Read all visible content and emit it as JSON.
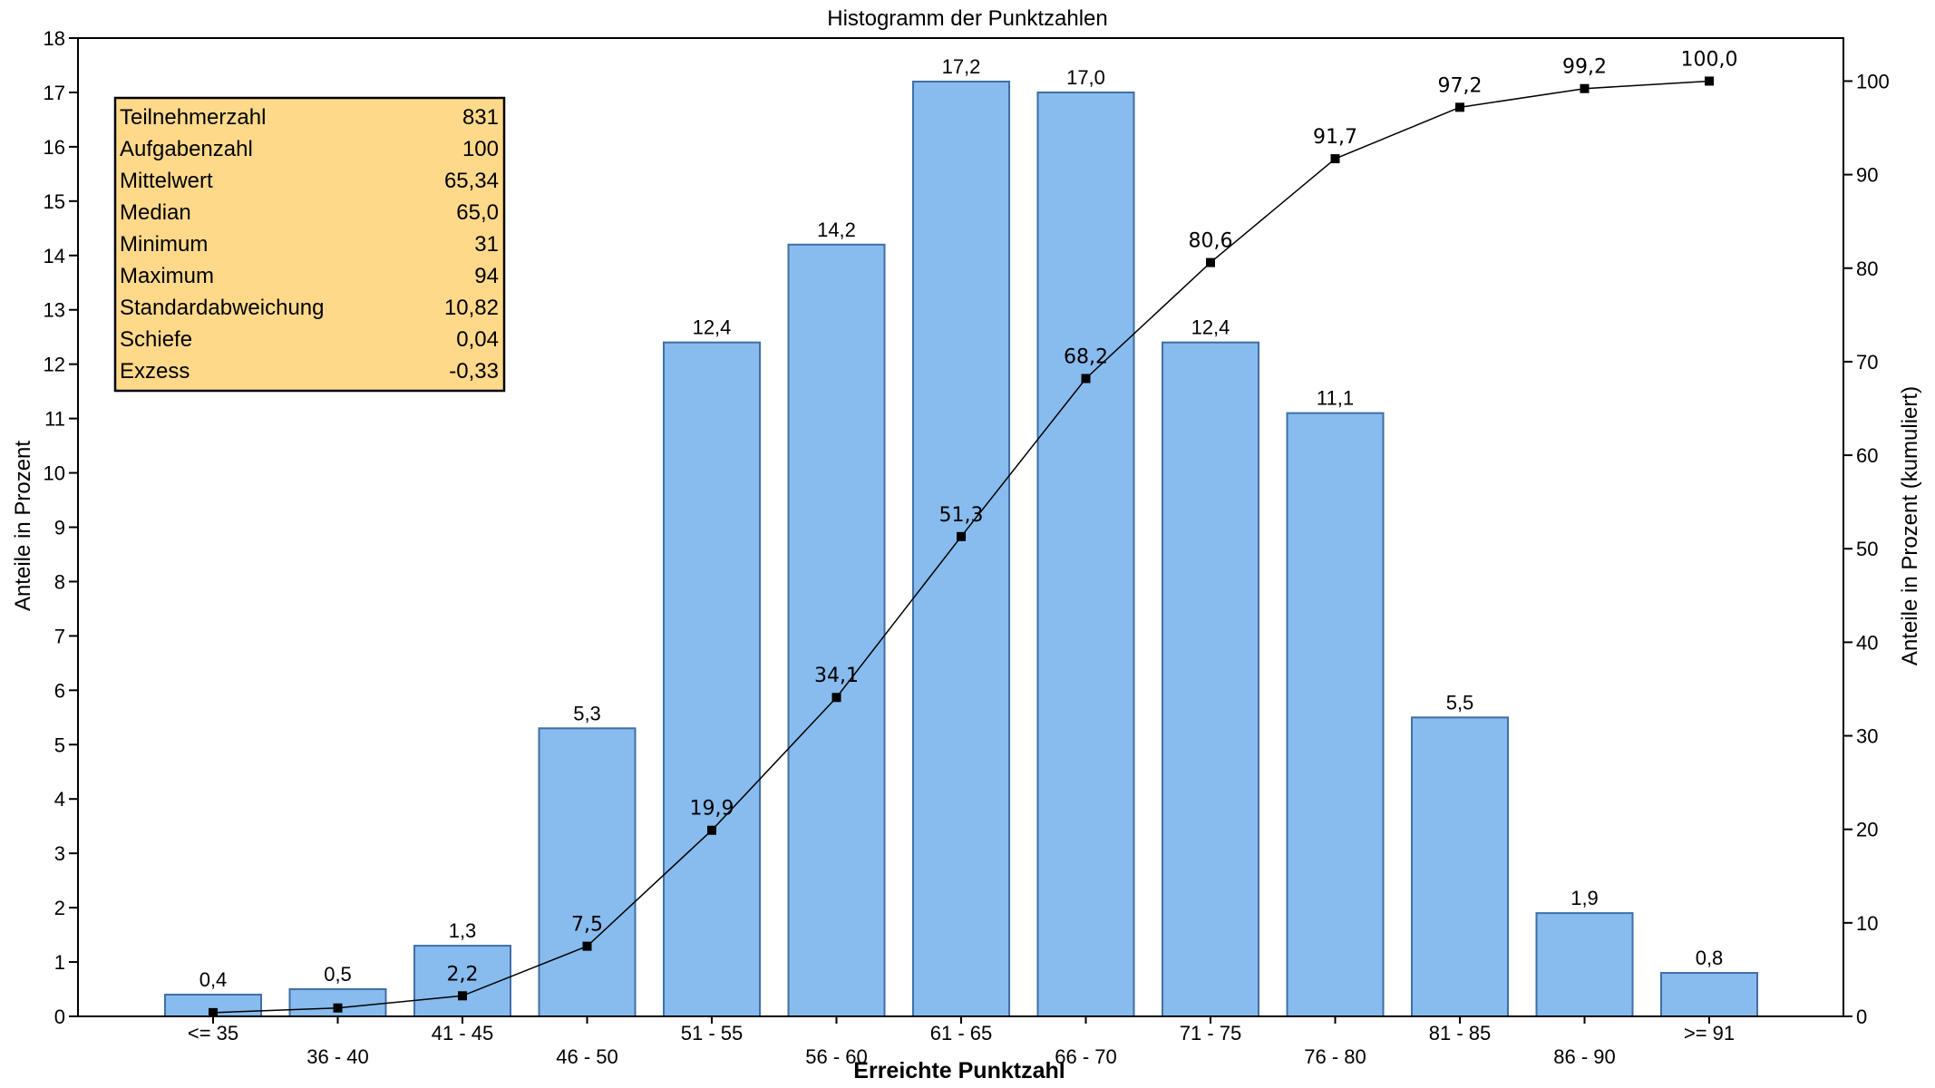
{
  "chart_data": {
    "type": "bar",
    "title": "Histogramm der Punktzahlen",
    "xlabel": "Erreichte Punktzahl",
    "ylabel": "Anteile in Prozent",
    "y2label": "Anteile in Prozent (kumuliert)",
    "categories": [
      "<= 35",
      "36 - 40",
      "41 - 45",
      "46 - 50",
      "51 - 55",
      "56 - 60",
      "61 - 65",
      "66 - 70",
      "71 - 75",
      "76 - 80",
      "81 - 85",
      "86 - 90",
      ">= 91"
    ],
    "series": [
      {
        "type": "bar",
        "axis": "left",
        "values": [
          0.4,
          0.5,
          1.3,
          5.3,
          12.4,
          14.2,
          17.2,
          17.0,
          12.4,
          11.1,
          5.5,
          1.9,
          0.8
        ],
        "labels": [
          "0,4",
          "0,5",
          "1,3",
          "5,3",
          "12,4",
          "14,2",
          "17,2",
          "17,0",
          "12,4",
          "11,1",
          "5,5",
          "1,9",
          "0,8"
        ]
      },
      {
        "type": "line",
        "axis": "right",
        "values": [
          0.4,
          0.9,
          2.2,
          7.5,
          19.9,
          34.1,
          51.3,
          68.2,
          80.6,
          91.7,
          97.2,
          99.2,
          100.0
        ],
        "labels": [
          "",
          "",
          "2,2",
          "7,5",
          "19,9",
          "34,1",
          "51,3",
          "68,2",
          "80,6",
          "91,7",
          "97,2",
          "99,2",
          "100,0"
        ]
      }
    ],
    "ylim": [
      0,
      18
    ],
    "yticks": [
      0,
      1,
      2,
      3,
      4,
      5,
      6,
      7,
      8,
      9,
      10,
      11,
      12,
      13,
      14,
      15,
      16,
      17,
      18
    ],
    "y2lim": [
      0,
      104.6
    ],
    "y2ticks": [
      0,
      10,
      20,
      30,
      40,
      50,
      60,
      70,
      80,
      90,
      100
    ],
    "grid": false,
    "colors": {
      "bar_fill": "#88bbee",
      "bar_stroke": "#3f6fa6",
      "line": "#000000",
      "stats_box": "#ffd98a"
    },
    "stats_box": [
      [
        "Teilnehmerzahl",
        "831"
      ],
      [
        "Aufgabenzahl",
        "100"
      ],
      [
        "Mittelwert",
        "65,34"
      ],
      [
        "Median",
        "65,0"
      ],
      [
        "Minimum",
        "31"
      ],
      [
        "Maximum",
        "94"
      ],
      [
        "Standardabweichung",
        "10,82"
      ],
      [
        "Schiefe",
        "0,04"
      ],
      [
        "Exzess",
        "-0,33"
      ]
    ]
  }
}
